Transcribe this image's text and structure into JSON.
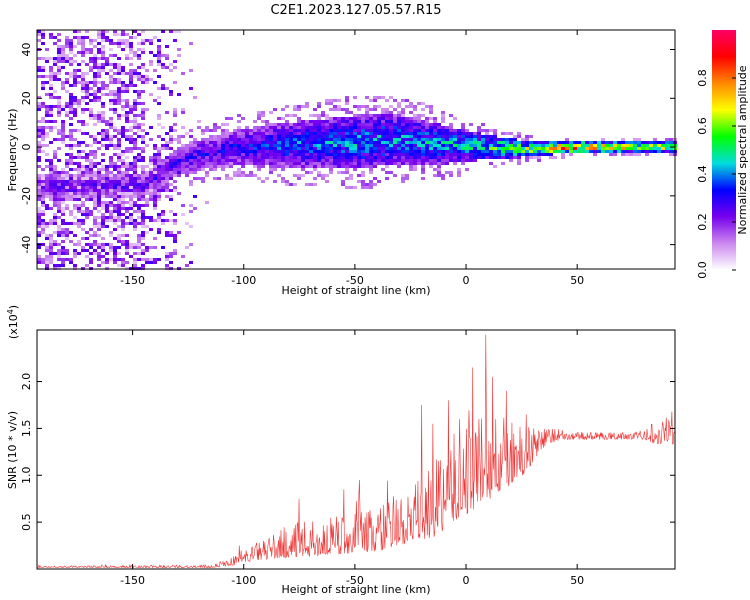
{
  "figure": {
    "title": "C2E1.2023.127.05.57.R15"
  },
  "chart_data": [
    {
      "type": "heatmap",
      "xlabel": "Height of straight line (km)",
      "ylabel": "Frequency (Hz)",
      "xlim": [
        -193,
        94
      ],
      "ylim": [
        -50,
        48
      ],
      "xticks": [
        -150,
        -100,
        -50,
        0,
        50
      ],
      "yticks": [
        -40,
        -20,
        0,
        20,
        40
      ],
      "colorbar": {
        "label": "Normalized spectral amplitude",
        "range": [
          0.0,
          1.0
        ],
        "ticks": [
          0.0,
          0.2,
          0.4,
          0.6,
          0.8
        ],
        "tick_labels": [
          "0.0",
          "0.2",
          "0.4",
          "0.6",
          "0.8"
        ],
        "stops": [
          "#ffffff",
          "#cc88ee",
          "#7700ee",
          "#0000ff",
          "#00dddd",
          "#00ff00",
          "#ffff00",
          "#ff8800",
          "#ff0000",
          "#ff0066"
        ]
      },
      "noise_region_x": [
        -193,
        -115
      ],
      "signal_center": [
        {
          "x": -145,
          "f": -16
        },
        {
          "x": -130,
          "f": -6
        },
        {
          "x": -115,
          "f": -2
        },
        {
          "x": -100,
          "f": 0
        },
        {
          "x": -75,
          "f": 1
        },
        {
          "x": -50,
          "f": 2
        },
        {
          "x": -30,
          "f": 3
        },
        {
          "x": -10,
          "f": 1
        },
        {
          "x": 10,
          "f": 0
        },
        {
          "x": 30,
          "f": -1
        },
        {
          "x": 50,
          "f": 0
        },
        {
          "x": 70,
          "f": 0
        },
        {
          "x": 94,
          "f": 0
        }
      ],
      "signal_halfwidth": [
        {
          "x": -145,
          "w": 5
        },
        {
          "x": -110,
          "w": 7
        },
        {
          "x": -80,
          "w": 9
        },
        {
          "x": -50,
          "w": 11
        },
        {
          "x": -30,
          "w": 10
        },
        {
          "x": -10,
          "w": 8
        },
        {
          "x": 10,
          "w": 5
        },
        {
          "x": 30,
          "w": 3
        },
        {
          "x": 50,
          "w": 2
        },
        {
          "x": 94,
          "w": 2
        }
      ],
      "signal_amplitude": [
        {
          "x": -145,
          "a": 0.25
        },
        {
          "x": -110,
          "a": 0.3
        },
        {
          "x": -80,
          "a": 0.38
        },
        {
          "x": -50,
          "a": 0.42
        },
        {
          "x": -20,
          "a": 0.42
        },
        {
          "x": 0,
          "a": 0.45
        },
        {
          "x": 15,
          "a": 0.55
        },
        {
          "x": 30,
          "a": 0.62
        },
        {
          "x": 45,
          "a": 0.88
        },
        {
          "x": 65,
          "a": 0.75
        },
        {
          "x": 80,
          "a": 0.7
        },
        {
          "x": 94,
          "a": 0.65
        }
      ]
    },
    {
      "type": "line",
      "xlabel": "Height of straight line (km)",
      "ylabel": "SNR (10 * v/v)",
      "scale_note": "(x10",
      "scale_exp": "4",
      "scale_close": ")",
      "xlim": [
        -193,
        94
      ],
      "ylim": [
        0.0,
        2.55
      ],
      "xticks": [
        -150,
        -100,
        -50,
        0,
        50
      ],
      "yticks": [
        0.5,
        1.0,
        1.5,
        2.0
      ],
      "ytick_labels": [
        "0.5",
        "1.0",
        "1.5",
        "2.0"
      ],
      "series": [
        {
          "color": "#ee3333",
          "base": [
            {
              "x": -193,
              "y": 0.02
            },
            {
              "x": -115,
              "y": 0.02
            },
            {
              "x": -105,
              "y": 0.06
            },
            {
              "x": -95,
              "y": 0.13
            },
            {
              "x": -80,
              "y": 0.2
            },
            {
              "x": -60,
              "y": 0.24
            },
            {
              "x": -40,
              "y": 0.3
            },
            {
              "x": -25,
              "y": 0.4
            },
            {
              "x": -15,
              "y": 0.5
            },
            {
              "x": -5,
              "y": 0.72
            },
            {
              "x": 5,
              "y": 0.9
            },
            {
              "x": 15,
              "y": 1.0
            },
            {
              "x": 25,
              "y": 1.1
            },
            {
              "x": 33,
              "y": 1.3
            },
            {
              "x": 40,
              "y": 1.4
            },
            {
              "x": 80,
              "y": 1.4
            },
            {
              "x": 94,
              "y": 1.42
            }
          ],
          "spread": [
            {
              "x": -193,
              "s": 0.01
            },
            {
              "x": -115,
              "s": 0.02
            },
            {
              "x": -100,
              "s": 0.08
            },
            {
              "x": -80,
              "s": 0.22
            },
            {
              "x": -50,
              "s": 0.28
            },
            {
              "x": -25,
              "s": 0.38
            },
            {
              "x": -10,
              "s": 0.55
            },
            {
              "x": 5,
              "s": 0.7
            },
            {
              "x": 20,
              "s": 0.45
            },
            {
              "x": 35,
              "s": 0.15
            },
            {
              "x": 45,
              "s": 0.05
            },
            {
              "x": 80,
              "s": 0.05
            },
            {
              "x": 85,
              "s": 0.2
            },
            {
              "x": 94,
              "s": 0.25
            }
          ],
          "peaks": [
            {
              "x": 9,
              "y": 2.5
            },
            {
              "x": 3,
              "y": 2.15
            },
            {
              "x": 12,
              "y": 2.05
            },
            {
              "x": -8,
              "y": 1.8
            },
            {
              "x": -20,
              "y": 1.75
            },
            {
              "x": 18,
              "y": 1.9
            },
            {
              "x": 27,
              "y": 1.65
            },
            {
              "x": -3,
              "y": 1.6
            },
            {
              "x": -15,
              "y": 1.55
            },
            {
              "x": -48,
              "y": 0.95
            },
            {
              "x": -75,
              "y": 0.75
            },
            {
              "x": -55,
              "y": 0.85
            }
          ]
        }
      ]
    }
  ]
}
